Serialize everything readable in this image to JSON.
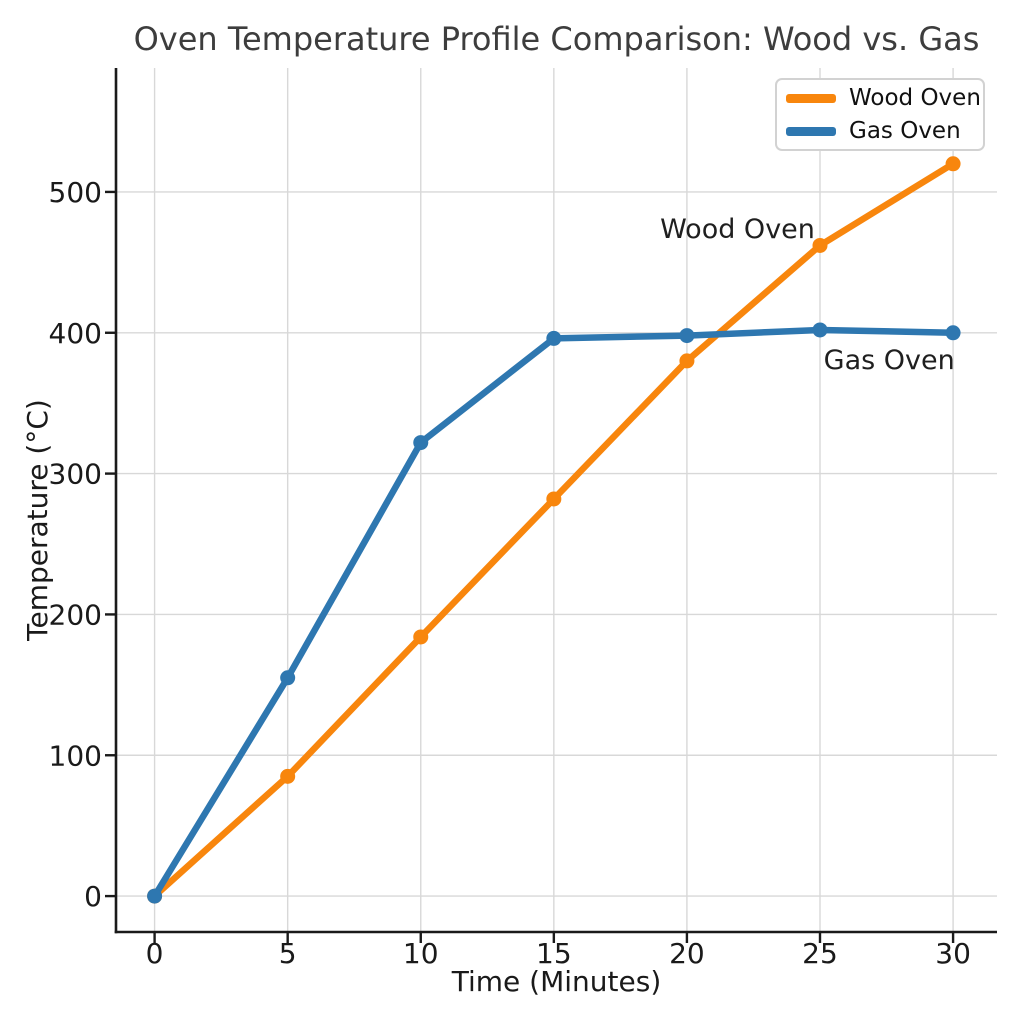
{
  "chart_data": {
    "type": "line",
    "title": "Oven Temperature Profile Comparison: Wood vs. Gas",
    "xlabel": "Time (Minutes)",
    "ylabel": "Temperature (°C)",
    "x": [
      0,
      5,
      10,
      15,
      20,
      25,
      30
    ],
    "series": [
      {
        "name": "Wood Oven",
        "color": "#f8860d",
        "values": [
          0,
          85,
          184,
          282,
          380,
          462,
          520
        ],
        "annotation": {
          "text": "Wood Oven",
          "x": 21.9,
          "y": 474
        }
      },
      {
        "name": "Gas Oven",
        "color": "#2e77b0",
        "values": [
          0,
          155,
          322,
          396,
          398,
          402,
          400
        ],
        "annotation": {
          "text": "Gas Oven",
          "x": 27.6,
          "y": 381
        }
      }
    ],
    "x_ticks": [
      0,
      5,
      10,
      15,
      20,
      25,
      30
    ],
    "y_ticks": [
      0,
      100,
      200,
      300,
      400,
      500
    ],
    "xlim": [
      -1.45,
      31.65
    ],
    "ylim": [
      -25.5,
      588
    ],
    "grid": true,
    "legend": {
      "position": "upper right",
      "labels": [
        "Wood Oven",
        "Gas Oven"
      ]
    }
  },
  "style": {
    "grid_color": "#d8d8d8",
    "spine_color": "#1a1a1a",
    "tick_label_color": "#1a1a1a",
    "annotation_color": "#1f1f1f",
    "title_color": "#3d3d3d"
  }
}
